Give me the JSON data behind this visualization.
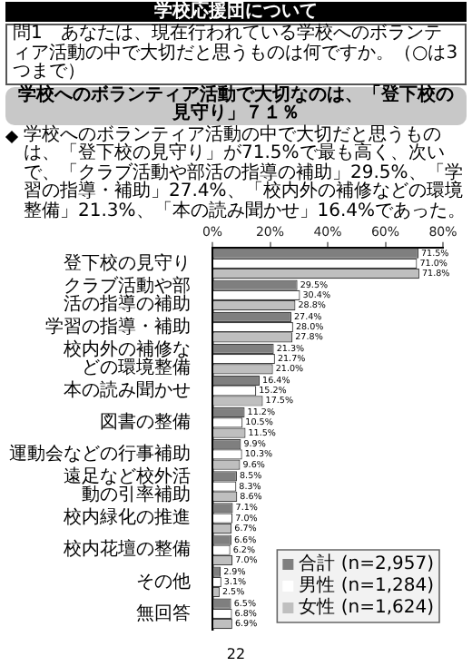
{
  "chart_data": {
    "type": "bar",
    "orientation": "horizontal",
    "title": "学校応援団について",
    "subtitle": "学校へのボランティア活動で大切なのは、「登下校の見守り」７１％",
    "annotations": [
      "問1　あなたは、現在行われている学校へのボランティア活動の中で大切だと思うものは何ですか。（○は3つまで）",
      "学校へのボランティア活動の中で大切だと思うものは、「登下校の見守り」が71.5%で最も高く、次いで、「クラブ活動や部活の指導の補助」29.5%、「学習の指導・補助」27.4%、「校内外の補修などの環境整備」21.3%、「本の読み聞かせ」16.4%であった。",
      "22"
    ],
    "categories": [
      "登下校の見守り",
      "クラブ活動や部活の指導の補助",
      "学習の指導・補助",
      "校内外の補修などの環境整備",
      "本の読み聞かせ",
      "図書の整備",
      "運動会などの行事補助",
      "遠足など校外活動の引率補助",
      "校内緑化の推進",
      "校内花壇の整備",
      "その他",
      "無回答"
    ],
    "series": [
      {
        "name": "合計 (n=2,957)",
        "color": "#7f7f7f",
        "values": [
          71.5,
          29.5,
          27.4,
          21.3,
          16.4,
          11.2,
          9.9,
          8.5,
          7.1,
          6.6,
          2.9,
          6.5
        ],
        "value_labels": [
          "71.5%",
          "29.5%",
          "27.4%",
          "21.3%",
          "16.4%",
          "11.2%",
          "9.9%",
          "8.5%",
          "7.1%",
          "6.6%",
          "2.9%",
          "6.5%"
        ]
      },
      {
        "name": "男性 (n=1,284)",
        "color": "#ffffff",
        "values": [
          71.0,
          30.4,
          28.0,
          21.7,
          15.2,
          10.5,
          10.3,
          8.3,
          7.0,
          6.2,
          3.1,
          6.8
        ],
        "value_labels": [
          "71.0%",
          "30.4%",
          "28.0%",
          "21.7%",
          "15.2%",
          "10.5%",
          "10.3%",
          "8.3%",
          "7.0%",
          "6.2%",
          "3.1%",
          "6.8%"
        ]
      },
      {
        "name": "女性 (n=1,624)",
        "color": "#bfbfbf",
        "values": [
          71.8,
          28.8,
          27.8,
          21.0,
          17.5,
          11.5,
          9.6,
          8.6,
          6.7,
          7.0,
          2.5,
          6.9
        ],
        "value_labels": [
          "71.8%",
          "28.8%",
          "27.8%",
          "21.0%",
          "17.5%",
          "11.5%",
          "9.6%",
          "8.6%",
          "6.7%",
          "7.0%",
          "2.5%",
          "6.9%"
        ]
      }
    ],
    "xlim": [
      0,
      80
    ],
    "xticks": [
      {
        "value": 0,
        "label": "0%"
      },
      {
        "value": 20,
        "label": "20%"
      },
      {
        "value": 40,
        "label": "40%"
      },
      {
        "value": 60,
        "label": "60%"
      },
      {
        "value": 80,
        "label": "80%"
      }
    ],
    "grid": false,
    "legend": "bottom right"
  }
}
